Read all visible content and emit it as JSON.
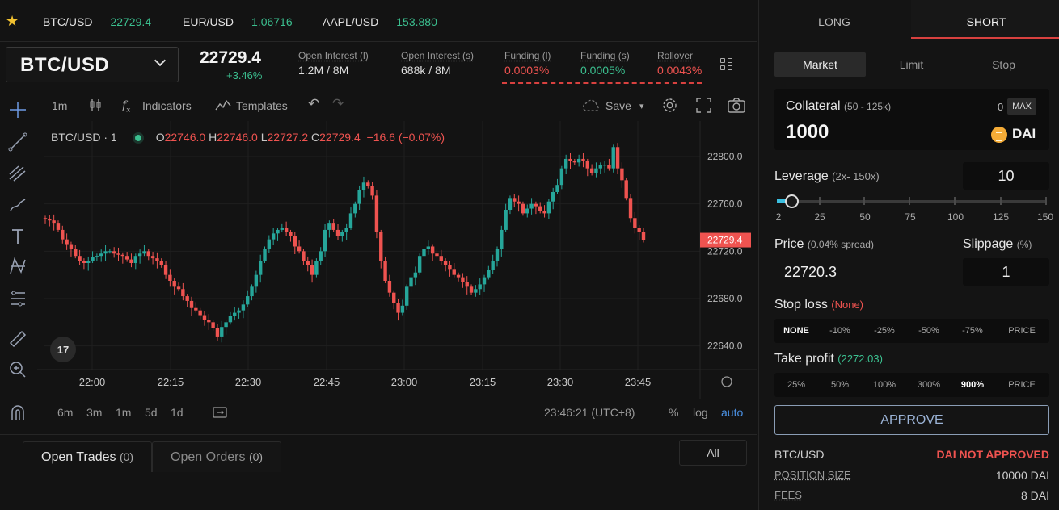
{
  "tickers": [
    {
      "symbol": "BTC/USD",
      "price": "22729.4"
    },
    {
      "symbol": "EUR/USD",
      "price": "1.06716"
    },
    {
      "symbol": "AAPL/USD",
      "price": "153.880"
    }
  ],
  "header": {
    "pair": "BTC/USD",
    "last_price": "22729.4",
    "change": "+3.46%",
    "stats": [
      {
        "label": "Open Interest (l)",
        "value": "1.2M / 8M"
      },
      {
        "label": "Open Interest (s)",
        "value": "688k / 8M"
      },
      {
        "label": "Funding (l)",
        "value": "0.0003%"
      },
      {
        "label": "Funding (s)",
        "value": "0.0005%"
      },
      {
        "label": "Rollover",
        "value": "0.0043%"
      }
    ]
  },
  "toolbar": {
    "interval": "1m",
    "indicators": "Indicators",
    "templates": "Templates",
    "save": "Save"
  },
  "legend": {
    "title": "BTC/USD · 1",
    "o_label": "O",
    "o_value": "22746.0",
    "h_label": "H",
    "h_value": "22746.0",
    "l_label": "L",
    "l_value": "22727.2",
    "c_label": "C",
    "c_value": "22729.4",
    "change": "−16.6 (−0.07%)"
  },
  "chart_data": {
    "type": "candlestick",
    "symbol": "BTC/USD",
    "interval": "1m",
    "ylim": [
      22620,
      22830
    ],
    "y_ticks": [
      22640,
      22680,
      22720,
      22760,
      22800
    ],
    "x_ticks": [
      "22:00",
      "22:15",
      "22:30",
      "22:45",
      "23:00",
      "23:15",
      "23:30",
      "23:45"
    ],
    "current_price": 22729.4,
    "closes": [
      22747,
      22746,
      22744,
      22738,
      22730,
      22726,
      22722,
      22716,
      22712,
      22710,
      22712,
      22715,
      22716,
      22718,
      22720,
      22720,
      22718,
      22717,
      22716,
      22713,
      22710,
      22716,
      22718,
      22720,
      22716,
      22714,
      22712,
      22708,
      22700,
      22695,
      22690,
      22688,
      22682,
      22678,
      22672,
      22670,
      22666,
      22662,
      22660,
      22655,
      22648,
      22656,
      22660,
      22665,
      22668,
      22670,
      22675,
      22682,
      22690,
      22700,
      22712,
      22722,
      22730,
      22735,
      22738,
      22740,
      22736,
      22733,
      22724,
      22720,
      22712,
      22708,
      22700,
      22712,
      22720,
      22738,
      22744,
      22738,
      22733,
      22736,
      22740,
      22752,
      22760,
      22772,
      22778,
      22775,
      22767,
      22736,
      22712,
      22695,
      22685,
      22676,
      22668,
      22674,
      22690,
      22698,
      22702,
      22716,
      22722,
      22724,
      22718,
      22716,
      22712,
      22708,
      22705,
      22700,
      22698,
      22694,
      22690,
      22685,
      22688,
      22692,
      22698,
      22704,
      22712,
      22722,
      22738,
      22755,
      22765,
      22762,
      22760,
      22752,
      22756,
      22760,
      22758,
      22754,
      22752,
      22762,
      22770,
      22776,
      22790,
      22798,
      22796,
      22795,
      22798,
      22796,
      22790,
      22786,
      22790,
      22793,
      22793,
      22790,
      22808,
      22790,
      22780,
      22765,
      22748,
      22740,
      22736,
      22729.4
    ]
  },
  "drawing_tools": [
    "crosshair-icon",
    "trendline-icon",
    "fib-icon",
    "brush-icon",
    "text-icon",
    "pattern-icon",
    "forecast-icon",
    "ruler-icon",
    "zoom-icon",
    "magnet-icon"
  ],
  "range_bar": {
    "ranges": [
      "6m",
      "3m",
      "1m",
      "5d",
      "1d"
    ],
    "clock": "23:46:21 (UTC+8)",
    "pct": "%",
    "log": "log",
    "auto": "auto"
  },
  "bottom_tabs": {
    "open_trades": "Open Trades",
    "open_trades_count": "(0)",
    "open_orders": "Open Orders",
    "open_orders_count": "(0)",
    "all": "All"
  },
  "order_panel": {
    "long": "LONG",
    "short": "SHORT",
    "types": [
      "Market",
      "Limit",
      "Stop"
    ],
    "collateral_label": "Collateral",
    "collateral_range": "(50 - 125k)",
    "collateral_balance": "0",
    "max": "MAX",
    "collateral_value": "1000",
    "token": "DAI",
    "leverage_label": "Leverage",
    "leverage_range": "(2x- 150x)",
    "leverage_value": "10",
    "leverage_marks": [
      "2",
      "25",
      "50",
      "75",
      "100",
      "125",
      "150"
    ],
    "price_label": "Price",
    "price_spread": "(0.04% spread)",
    "price_value": "22720.3",
    "slippage_label": "Slippage",
    "slippage_unit": "(%)",
    "slippage_value": "1",
    "stop_loss_label": "Stop loss",
    "stop_loss_value": "(None)",
    "stop_loss_options": [
      "NONE",
      "-10%",
      "-25%",
      "-50%",
      "-75%",
      "PRICE"
    ],
    "take_profit_label": "Take profit",
    "take_profit_value": "(2272.03)",
    "take_profit_options": [
      "25%",
      "50%",
      "100%",
      "300%",
      "900%",
      "PRICE"
    ],
    "approve": "APPROVE",
    "pair": "BTC/USD",
    "approval_status": "DAI NOT APPROVED",
    "position_size_label": "POSITION SIZE",
    "position_size_value": "10000 DAI",
    "fees_label": "FEES",
    "fees_value": "8 DAI"
  },
  "colors": {
    "up": "#26a69a",
    "down": "#ef5350",
    "accent": "#d8413f"
  }
}
